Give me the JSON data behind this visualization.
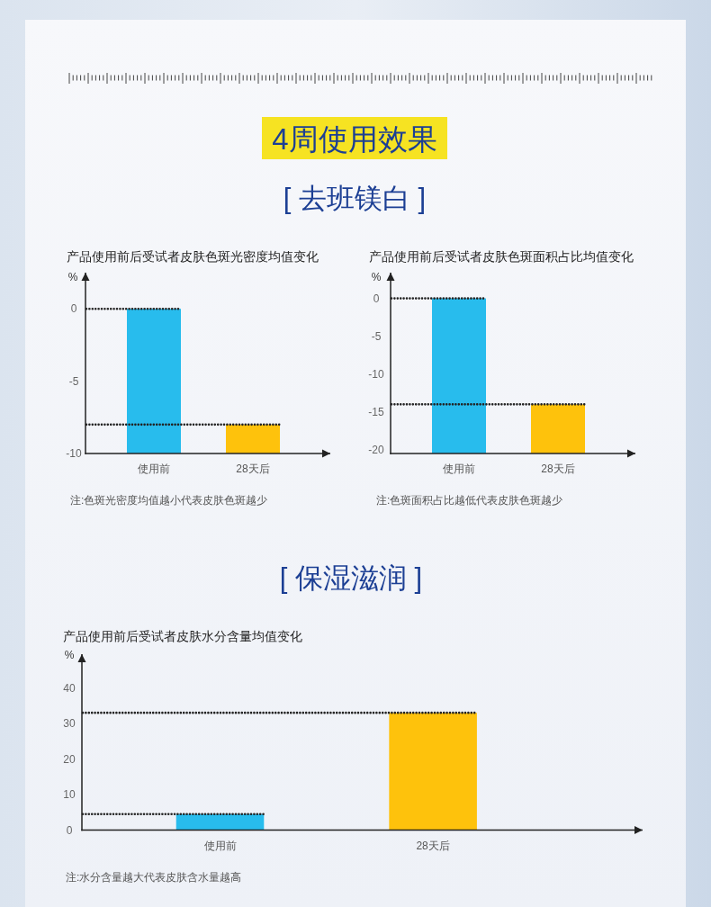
{
  "chart_data": [
    {
      "type": "other",
      "title": "4周使用效果",
      "subtitle": "[ 去班镁白 ]"
    },
    {
      "type": "bar",
      "title": "产品使用前后受试者皮肤色斑光密度均值变化",
      "ylabel": "%",
      "categories": [
        "使用前",
        "28天后"
      ],
      "base": [
        -10,
        -10
      ],
      "values": [
        10,
        2
      ],
      "colors": [
        "#28bced",
        "#fec20c"
      ],
      "ylim": [
        -10,
        2.5
      ],
      "yticks": [
        0,
        -5,
        -10
      ],
      "ref_lines": [
        {
          "axis": "y",
          "value": 0,
          "line_style": "dotted",
          "color": "#222222"
        },
        {
          "axis": "y",
          "value": -8,
          "line_style": "dotted",
          "color": "#222222"
        }
      ],
      "annotations": [
        "注:色斑光密度均值越小代表皮肤色斑越少"
      ]
    },
    {
      "type": "bar",
      "title": "产品使用前后受试者皮肤色斑面积占比均值变化",
      "ylabel": "%",
      "categories": [
        "使用前",
        "28天后"
      ],
      "base": [
        -20.5,
        -20.5
      ],
      "values": [
        20.5,
        6.5
      ],
      "colors": [
        "#28bced",
        "#fec20c"
      ],
      "ylim": [
        -20.5,
        3.4
      ],
      "yticks": [
        0,
        -5,
        -10,
        -15,
        -20
      ],
      "ref_lines": [
        {
          "axis": "y",
          "value": 0,
          "line_style": "dotted",
          "color": "#222222"
        },
        {
          "axis": "y",
          "value": -14,
          "line_style": "dotted",
          "color": "#222222"
        }
      ],
      "annotations": [
        "注:色斑面积占比越低代表皮肤色斑越少"
      ]
    },
    {
      "type": "other",
      "title": "[ 保湿滋润 ]"
    },
    {
      "type": "bar",
      "title": "产品使用前后受试者皮肤水分含量均值变化",
      "ylabel": "%",
      "categories": [
        "使用前",
        "28天后"
      ],
      "values": [
        4.5,
        33
      ],
      "colors": [
        "#28bced",
        "#fec20c"
      ],
      "ylim": [
        0,
        49.5
      ],
      "yticks": [
        0,
        10,
        20,
        30,
        40
      ],
      "ref_lines": [
        {
          "axis": "y",
          "value": 4.5,
          "line_style": "dotted",
          "color": "#222222"
        },
        {
          "axis": "y",
          "value": 33,
          "line_style": "dotted",
          "color": "#222222"
        }
      ],
      "annotations": [
        "注:水分含量越大代表皮肤含水量越高"
      ]
    }
  ]
}
